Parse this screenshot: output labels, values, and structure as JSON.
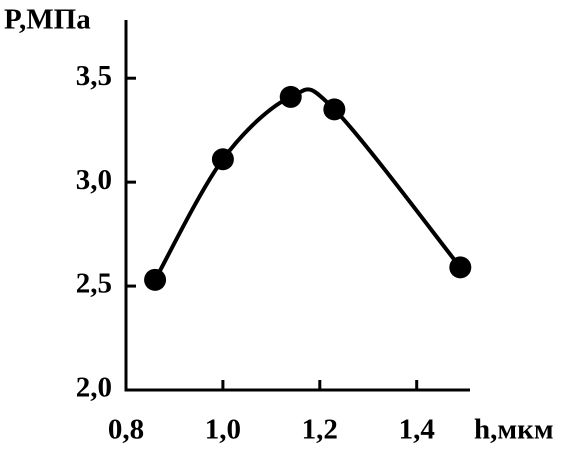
{
  "chart_data": {
    "type": "line",
    "y_label": "P,МПа",
    "x_label": "h,мкм",
    "x": [
      0.86,
      1.0,
      1.14,
      1.23,
      1.49
    ],
    "values": [
      2.53,
      3.11,
      3.41,
      3.35,
      2.59
    ],
    "color": "#000000",
    "xlim": [
      0.8,
      1.51
    ],
    "ylim": [
      2.0,
      3.78
    ],
    "xticks": [
      {
        "value": 0.8,
        "label": "0,8"
      },
      {
        "value": 1.0,
        "label": "1,0"
      },
      {
        "value": 1.2,
        "label": "1,2"
      },
      {
        "value": 1.4,
        "label": "1,4"
      }
    ],
    "yticks": [
      {
        "value": 2.0,
        "label": "2,0"
      },
      {
        "value": 2.5,
        "label": "2,5"
      },
      {
        "value": 3.0,
        "label": "3,0"
      },
      {
        "value": 3.5,
        "label": "3,5"
      }
    ],
    "grid": false,
    "smooth": true
  }
}
